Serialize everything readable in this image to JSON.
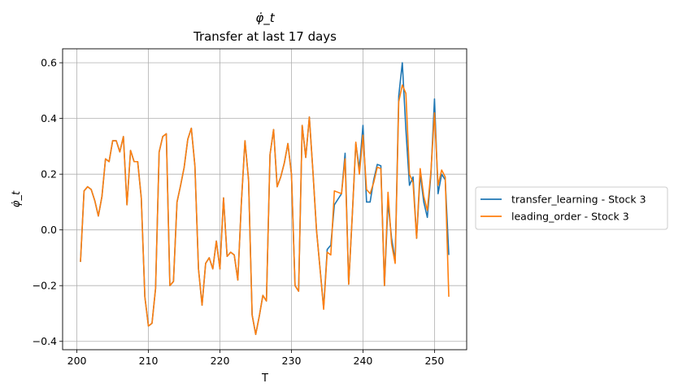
{
  "chart_data": {
    "type": "line",
    "title": "φ̇_t",
    "subtitle": "Transfer at last 17 days",
    "xlabel": "T",
    "ylabel": "φ̇_t",
    "xlim": [
      198,
      254.5
    ],
    "ylim": [
      -0.43,
      0.65
    ],
    "xticks": [
      200,
      210,
      220,
      230,
      240,
      250
    ],
    "yticks": [
      -0.4,
      -0.2,
      0.0,
      0.2,
      0.4,
      0.6
    ],
    "grid": true,
    "legend_position": "right, outside plot",
    "x": [
      200.5,
      201,
      201.5,
      202,
      202.5,
      203,
      203.5,
      204,
      204.5,
      205,
      205.5,
      206,
      206.5,
      207,
      207.5,
      208,
      208.5,
      209,
      209.5,
      210,
      210.5,
      211,
      211.5,
      212,
      212.5,
      213,
      213.5,
      214,
      214.5,
      215,
      215.5,
      216,
      216.5,
      217,
      217.5,
      218,
      218.5,
      219,
      219.5,
      220,
      220.5,
      221,
      221.5,
      222,
      222.5,
      223,
      223.5,
      224,
      224.5,
      225,
      225.5,
      226,
      226.5,
      227,
      227.5,
      228,
      228.5,
      229,
      229.5,
      230,
      230.5,
      231,
      231.5,
      232,
      232.5,
      233,
      233.5,
      234,
      234.5,
      235,
      235.5,
      236,
      236.5,
      237,
      237.5,
      238,
      238.5,
      239,
      239.5,
      240,
      240.5,
      241,
      241.5,
      242,
      242.5,
      243,
      243.5,
      244,
      244.5,
      245,
      245.5,
      246,
      246.5,
      247,
      247.5,
      248,
      248.5,
      249,
      249.5,
      250,
      250.5,
      251,
      251.5,
      252
    ],
    "series": [
      {
        "name": "transfer_learning - Stock 3",
        "color": "#1f77b4",
        "values": [
          -0.115,
          0.14,
          0.155,
          0.145,
          0.105,
          0.05,
          0.12,
          0.255,
          0.245,
          0.32,
          0.32,
          0.28,
          0.335,
          0.09,
          0.285,
          0.245,
          0.245,
          0.115,
          -0.24,
          -0.345,
          -0.335,
          -0.21,
          0.28,
          0.335,
          0.345,
          -0.2,
          -0.185,
          0.1,
          0.16,
          0.225,
          0.325,
          0.365,
          0.23,
          -0.14,
          -0.27,
          -0.12,
          -0.1,
          -0.14,
          -0.04,
          -0.14,
          0.115,
          -0.095,
          -0.08,
          -0.09,
          -0.18,
          0.1,
          0.32,
          0.18,
          -0.305,
          -0.375,
          -0.31,
          -0.235,
          -0.255,
          0.27,
          0.36,
          0.155,
          0.19,
          0.24,
          0.31,
          0.2,
          -0.2,
          -0.22,
          0.375,
          0.26,
          0.405,
          0.21,
          0.0,
          -0.14,
          -0.28,
          -0.07,
          -0.055,
          0.09,
          0.11,
          0.13,
          0.275,
          -0.195,
          0.05,
          0.31,
          0.22,
          0.375,
          0.1,
          0.1,
          0.18,
          0.235,
          0.23,
          -0.2,
          0.1,
          -0.03,
          -0.11,
          0.48,
          0.6,
          0.36,
          0.16,
          0.19,
          -0.03,
          0.2,
          0.1,
          0.045,
          0.2,
          0.47,
          0.13,
          0.2,
          0.18,
          -0.09
        ]
      },
      {
        "name": "leading_order - Stock 3",
        "color": "#ff7f0e",
        "values": [
          -0.115,
          0.14,
          0.155,
          0.145,
          0.105,
          0.05,
          0.12,
          0.255,
          0.245,
          0.32,
          0.32,
          0.28,
          0.335,
          0.09,
          0.285,
          0.245,
          0.245,
          0.115,
          -0.24,
          -0.345,
          -0.335,
          -0.21,
          0.28,
          0.335,
          0.345,
          -0.2,
          -0.185,
          0.1,
          0.16,
          0.225,
          0.325,
          0.365,
          0.23,
          -0.14,
          -0.27,
          -0.12,
          -0.1,
          -0.14,
          -0.04,
          -0.14,
          0.115,
          -0.095,
          -0.08,
          -0.09,
          -0.18,
          0.1,
          0.32,
          0.18,
          -0.305,
          -0.375,
          -0.31,
          -0.235,
          -0.255,
          0.27,
          0.36,
          0.155,
          0.19,
          0.24,
          0.31,
          0.2,
          -0.2,
          -0.22,
          0.375,
          0.26,
          0.405,
          0.21,
          0.0,
          -0.14,
          -0.285,
          -0.08,
          -0.09,
          0.14,
          0.135,
          0.13,
          0.255,
          -0.195,
          0.05,
          0.315,
          0.2,
          0.34,
          0.145,
          0.13,
          0.17,
          0.225,
          0.22,
          -0.2,
          0.135,
          -0.05,
          -0.12,
          0.46,
          0.52,
          0.49,
          0.2,
          0.17,
          -0.03,
          0.22,
          0.12,
          0.07,
          0.21,
          0.42,
          0.16,
          0.215,
          0.19,
          -0.24
        ]
      }
    ]
  }
}
